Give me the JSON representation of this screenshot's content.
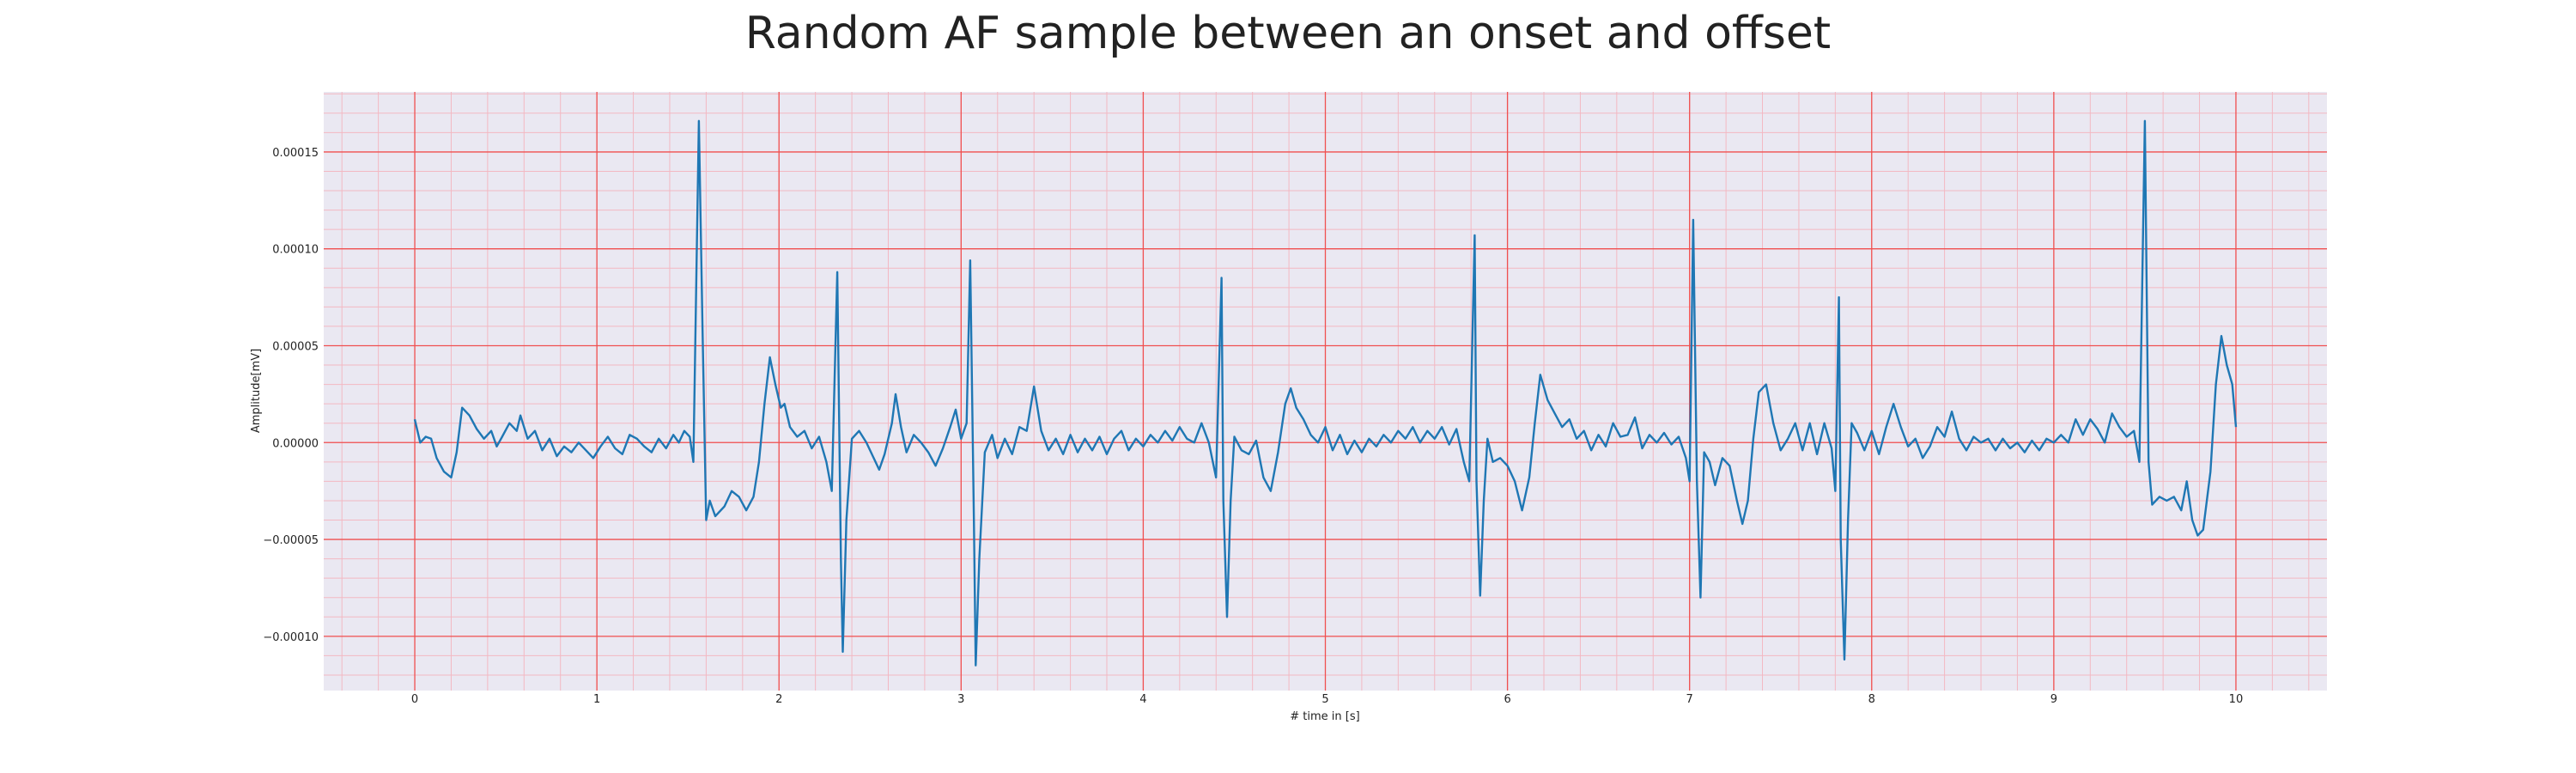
{
  "chart_data": {
    "type": "line",
    "title": "Random AF sample between an onset and offset",
    "xlabel": "# time in [s]",
    "ylabel": "Amplitude[mV]",
    "xlim": [
      -0.5,
      10.5
    ],
    "ylim": [
      -0.000128,
      0.000181
    ],
    "x_ticks": [
      0,
      1,
      2,
      3,
      4,
      5,
      6,
      7,
      8,
      9,
      10
    ],
    "x_tick_labels": [
      "0",
      "1",
      "2",
      "3",
      "4",
      "5",
      "6",
      "7",
      "8",
      "9",
      "10"
    ],
    "y_ticks": [
      -0.0001,
      -5e-05,
      0,
      5e-05,
      0.0001,
      0.00015
    ],
    "y_tick_labels": [
      "−0.00010",
      "−0.00005",
      "0.00000",
      "0.00005",
      "0.00010",
      "0.00015"
    ],
    "grid": true,
    "minor_grid": true,
    "colors": {
      "line": "#1f77b4",
      "background": "#eae8f2",
      "major_grid": "#f05050",
      "minor_grid": "#f3b8c2"
    },
    "series": [
      {
        "points": [
          [
            0.0,
            1.2e-05
          ],
          [
            0.03,
            0.0
          ],
          [
            0.06,
            3e-06
          ],
          [
            0.09,
            2e-06
          ],
          [
            0.12,
            -8e-06
          ],
          [
            0.16,
            -1.5e-05
          ],
          [
            0.2,
            -1.8e-05
          ],
          [
            0.23,
            -5e-06
          ],
          [
            0.26,
            1.8e-05
          ],
          [
            0.3,
            1.4e-05
          ],
          [
            0.34,
            7e-06
          ],
          [
            0.38,
            2e-06
          ],
          [
            0.42,
            6e-06
          ],
          [
            0.45,
            -2e-06
          ],
          [
            0.48,
            3e-06
          ],
          [
            0.52,
            1e-05
          ],
          [
            0.56,
            6e-06
          ],
          [
            0.58,
            1.4e-05
          ],
          [
            0.62,
            2e-06
          ],
          [
            0.66,
            6e-06
          ],
          [
            0.7,
            -4e-06
          ],
          [
            0.74,
            2e-06
          ],
          [
            0.78,
            -7e-06
          ],
          [
            0.82,
            -2e-06
          ],
          [
            0.86,
            -5e-06
          ],
          [
            0.9,
            0.0
          ],
          [
            0.94,
            -4e-06
          ],
          [
            0.98,
            -8e-06
          ],
          [
            1.02,
            -2e-06
          ],
          [
            1.06,
            3e-06
          ],
          [
            1.1,
            -3e-06
          ],
          [
            1.14,
            -6e-06
          ],
          [
            1.18,
            4e-06
          ],
          [
            1.22,
            2e-06
          ],
          [
            1.26,
            -2e-06
          ],
          [
            1.3,
            -5e-06
          ],
          [
            1.34,
            2e-06
          ],
          [
            1.38,
            -3e-06
          ],
          [
            1.42,
            4e-06
          ],
          [
            1.45,
            0.0
          ],
          [
            1.48,
            6e-06
          ],
          [
            1.51,
            3e-06
          ],
          [
            1.53,
            -1e-05
          ],
          [
            1.56,
            0.000166
          ],
          [
            1.58,
            6e-05
          ],
          [
            1.6,
            -4e-05
          ],
          [
            1.62,
            -3e-05
          ],
          [
            1.65,
            -3.8e-05
          ],
          [
            1.7,
            -3.3e-05
          ],
          [
            1.74,
            -2.5e-05
          ],
          [
            1.78,
            -2.8e-05
          ],
          [
            1.82,
            -3.5e-05
          ],
          [
            1.86,
            -2.8e-05
          ],
          [
            1.89,
            -1e-05
          ],
          [
            1.92,
            2e-05
          ],
          [
            1.95,
            4.4e-05
          ],
          [
            1.98,
            3e-05
          ],
          [
            2.01,
            1.8e-05
          ],
          [
            2.03,
            2e-05
          ],
          [
            2.06,
            8e-06
          ],
          [
            2.1,
            3e-06
          ],
          [
            2.14,
            6e-06
          ],
          [
            2.18,
            -3e-06
          ],
          [
            2.22,
            3e-06
          ],
          [
            2.26,
            -1e-05
          ],
          [
            2.29,
            -2.5e-05
          ],
          [
            2.32,
            8.8e-05
          ],
          [
            2.34,
            -6e-05
          ],
          [
            2.35,
            -0.000108
          ],
          [
            2.37,
            -4e-05
          ],
          [
            2.4,
            2e-06
          ],
          [
            2.44,
            6e-06
          ],
          [
            2.48,
            0.0
          ],
          [
            2.52,
            -8e-06
          ],
          [
            2.55,
            -1.4e-05
          ],
          [
            2.58,
            -6e-06
          ],
          [
            2.62,
            1e-05
          ],
          [
            2.64,
            2.5e-05
          ],
          [
            2.67,
            8e-06
          ],
          [
            2.7,
            -5e-06
          ],
          [
            2.74,
            4e-06
          ],
          [
            2.78,
            0.0
          ],
          [
            2.82,
            -5e-06
          ],
          [
            2.86,
            -1.2e-05
          ],
          [
            2.9,
            -3e-06
          ],
          [
            2.94,
            8e-06
          ],
          [
            2.97,
            1.7e-05
          ],
          [
            3.0,
            2e-06
          ],
          [
            3.03,
            1e-05
          ],
          [
            3.05,
            9.4e-05
          ],
          [
            3.07,
            -4e-05
          ],
          [
            3.08,
            -0.000115
          ],
          [
            3.1,
            -6e-05
          ],
          [
            3.13,
            -5e-06
          ],
          [
            3.17,
            4e-06
          ],
          [
            3.2,
            -8e-06
          ],
          [
            3.24,
            2e-06
          ],
          [
            3.28,
            -6e-06
          ],
          [
            3.32,
            8e-06
          ],
          [
            3.36,
            6e-06
          ],
          [
            3.4,
            2.9e-05
          ],
          [
            3.44,
            6e-06
          ],
          [
            3.48,
            -4e-06
          ],
          [
            3.52,
            2e-06
          ],
          [
            3.56,
            -6e-06
          ],
          [
            3.6,
            4e-06
          ],
          [
            3.64,
            -5e-06
          ],
          [
            3.68,
            2e-06
          ],
          [
            3.72,
            -4e-06
          ],
          [
            3.76,
            3e-06
          ],
          [
            3.8,
            -6e-06
          ],
          [
            3.84,
            2e-06
          ],
          [
            3.88,
            6e-06
          ],
          [
            3.92,
            -4e-06
          ],
          [
            3.96,
            2e-06
          ],
          [
            4.0,
            -2e-06
          ],
          [
            4.04,
            4e-06
          ],
          [
            4.08,
            0.0
          ],
          [
            4.12,
            6e-06
          ],
          [
            4.16,
            1e-06
          ],
          [
            4.2,
            8e-06
          ],
          [
            4.24,
            2e-06
          ],
          [
            4.28,
            0.0
          ],
          [
            4.32,
            1e-05
          ],
          [
            4.36,
            0.0
          ],
          [
            4.4,
            -1.8e-05
          ],
          [
            4.43,
            8.5e-05
          ],
          [
            4.44,
            -3e-05
          ],
          [
            4.46,
            -9e-05
          ],
          [
            4.48,
            -3e-05
          ],
          [
            4.5,
            3e-06
          ],
          [
            4.54,
            -4e-06
          ],
          [
            4.58,
            -6e-06
          ],
          [
            4.62,
            1e-06
          ],
          [
            4.66,
            -1.8e-05
          ],
          [
            4.7,
            -2.5e-05
          ],
          [
            4.74,
            -5e-06
          ],
          [
            4.78,
            2e-05
          ],
          [
            4.81,
            2.8e-05
          ],
          [
            4.84,
            1.8e-05
          ],
          [
            4.88,
            1.2e-05
          ],
          [
            4.92,
            4e-06
          ],
          [
            4.96,
            0.0
          ],
          [
            5.0,
            8e-06
          ],
          [
            5.04,
            -4e-06
          ],
          [
            5.08,
            4e-06
          ],
          [
            5.12,
            -6e-06
          ],
          [
            5.16,
            1e-06
          ],
          [
            5.2,
            -5e-06
          ],
          [
            5.24,
            2e-06
          ],
          [
            5.28,
            -2e-06
          ],
          [
            5.32,
            4e-06
          ],
          [
            5.36,
            0.0
          ],
          [
            5.4,
            6e-06
          ],
          [
            5.44,
            2e-06
          ],
          [
            5.48,
            8e-06
          ],
          [
            5.52,
            0.0
          ],
          [
            5.56,
            6e-06
          ],
          [
            5.6,
            2e-06
          ],
          [
            5.64,
            8e-06
          ],
          [
            5.68,
            -1e-06
          ],
          [
            5.72,
            7e-06
          ],
          [
            5.76,
            -1e-05
          ],
          [
            5.79,
            -2e-05
          ],
          [
            5.82,
            0.000107
          ],
          [
            5.83,
            -2e-05
          ],
          [
            5.85,
            -7.9e-05
          ],
          [
            5.87,
            -3e-05
          ],
          [
            5.89,
            2e-06
          ],
          [
            5.92,
            -1e-05
          ],
          [
            5.96,
            -8e-06
          ],
          [
            6.0,
            -1.2e-05
          ],
          [
            6.04,
            -2e-05
          ],
          [
            6.08,
            -3.5e-05
          ],
          [
            6.12,
            -1.8e-05
          ],
          [
            6.15,
            1e-05
          ],
          [
            6.18,
            3.5e-05
          ],
          [
            6.22,
            2.2e-05
          ],
          [
            6.26,
            1.5e-05
          ],
          [
            6.3,
            8e-06
          ],
          [
            6.34,
            1.2e-05
          ],
          [
            6.38,
            2e-06
          ],
          [
            6.42,
            6e-06
          ],
          [
            6.46,
            -4e-06
          ],
          [
            6.5,
            4e-06
          ],
          [
            6.54,
            -2e-06
          ],
          [
            6.58,
            1e-05
          ],
          [
            6.62,
            3e-06
          ],
          [
            6.66,
            4e-06
          ],
          [
            6.7,
            1.3e-05
          ],
          [
            6.74,
            -3e-06
          ],
          [
            6.78,
            4e-06
          ],
          [
            6.82,
            0.0
          ],
          [
            6.86,
            5e-06
          ],
          [
            6.9,
            -1e-06
          ],
          [
            6.94,
            3e-06
          ],
          [
            6.98,
            -8e-06
          ],
          [
            7.0,
            -2e-05
          ],
          [
            7.02,
            0.000115
          ],
          [
            7.04,
            -2e-05
          ],
          [
            7.06,
            -8e-05
          ],
          [
            7.08,
            -5e-06
          ],
          [
            7.11,
            -1e-05
          ],
          [
            7.14,
            -2.2e-05
          ],
          [
            7.18,
            -8e-06
          ],
          [
            7.22,
            -1.2e-05
          ],
          [
            7.26,
            -3e-05
          ],
          [
            7.29,
            -4.2e-05
          ],
          [
            7.32,
            -3e-05
          ],
          [
            7.35,
            2e-06
          ],
          [
            7.38,
            2.6e-05
          ],
          [
            7.42,
            3e-05
          ],
          [
            7.46,
            1e-05
          ],
          [
            7.5,
            -4e-06
          ],
          [
            7.54,
            2e-06
          ],
          [
            7.58,
            1e-05
          ],
          [
            7.62,
            -4e-06
          ],
          [
            7.66,
            1e-05
          ],
          [
            7.7,
            -6e-06
          ],
          [
            7.74,
            1e-05
          ],
          [
            7.78,
            -3e-06
          ],
          [
            7.8,
            -2.5e-05
          ],
          [
            7.82,
            7.5e-05
          ],
          [
            7.83,
            -5e-05
          ],
          [
            7.85,
            -0.000112
          ],
          [
            7.87,
            -4e-05
          ],
          [
            7.89,
            1e-05
          ],
          [
            7.92,
            5e-06
          ],
          [
            7.96,
            -4e-06
          ],
          [
            8.0,
            6e-06
          ],
          [
            8.04,
            -6e-06
          ],
          [
            8.08,
            8e-06
          ],
          [
            8.12,
            2e-05
          ],
          [
            8.16,
            8e-06
          ],
          [
            8.2,
            -2e-06
          ],
          [
            8.24,
            2e-06
          ],
          [
            8.28,
            -8e-06
          ],
          [
            8.32,
            -2e-06
          ],
          [
            8.36,
            8e-06
          ],
          [
            8.4,
            3e-06
          ],
          [
            8.44,
            1.6e-05
          ],
          [
            8.48,
            2e-06
          ],
          [
            8.52,
            -4e-06
          ],
          [
            8.56,
            3e-06
          ],
          [
            8.6,
            0.0
          ],
          [
            8.64,
            2e-06
          ],
          [
            8.68,
            -4e-06
          ],
          [
            8.72,
            2e-06
          ],
          [
            8.76,
            -3e-06
          ],
          [
            8.8,
            0.0
          ],
          [
            8.84,
            -5e-06
          ],
          [
            8.88,
            1e-06
          ],
          [
            8.92,
            -4e-06
          ],
          [
            8.96,
            2e-06
          ],
          [
            9.0,
            0.0
          ],
          [
            9.04,
            4e-06
          ],
          [
            9.08,
            0.0
          ],
          [
            9.12,
            1.2e-05
          ],
          [
            9.16,
            4e-06
          ],
          [
            9.2,
            1.2e-05
          ],
          [
            9.24,
            7e-06
          ],
          [
            9.28,
            0.0
          ],
          [
            9.32,
            1.5e-05
          ],
          [
            9.36,
            8e-06
          ],
          [
            9.4,
            3e-06
          ],
          [
            9.44,
            6e-06
          ],
          [
            9.47,
            -1e-05
          ],
          [
            9.5,
            0.000166
          ],
          [
            9.52,
            -1e-05
          ],
          [
            9.54,
            -3.2e-05
          ],
          [
            9.58,
            -2.8e-05
          ],
          [
            9.62,
            -3e-05
          ],
          [
            9.66,
            -2.8e-05
          ],
          [
            9.7,
            -3.5e-05
          ],
          [
            9.73,
            -2e-05
          ],
          [
            9.76,
            -4e-05
          ],
          [
            9.79,
            -4.8e-05
          ],
          [
            9.82,
            -4.5e-05
          ],
          [
            9.86,
            -1.5e-05
          ],
          [
            9.89,
            3e-05
          ],
          [
            9.92,
            5.5e-05
          ],
          [
            9.95,
            4e-05
          ],
          [
            9.98,
            3e-05
          ],
          [
            10.0,
            8e-06
          ]
        ]
      }
    ]
  }
}
